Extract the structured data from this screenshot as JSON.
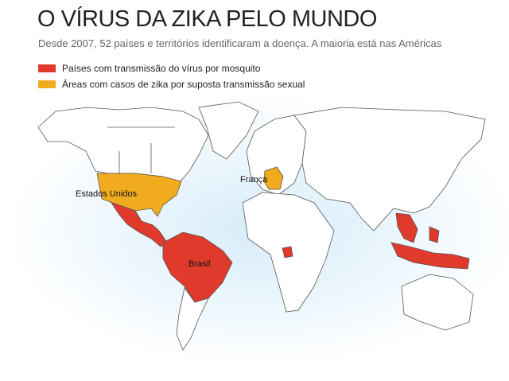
{
  "header": {
    "title": "O VÍRUS DA ZIKA PELO MUNDO",
    "subtitle": "Desde 2007, 52 países e territórios identificaram a doença. A maioria está nas Américas"
  },
  "legend": [
    {
      "label": "Países com transmissão do vírus por mosquito",
      "color": "#e03a2c"
    },
    {
      "label": "Áreas com casos de zika por suposta transmissão sexual",
      "color": "#f0ab1e"
    }
  ],
  "map_labels": [
    {
      "label": "Estados Unidos"
    },
    {
      "label": "França"
    },
    {
      "label": "Brasil"
    }
  ]
}
